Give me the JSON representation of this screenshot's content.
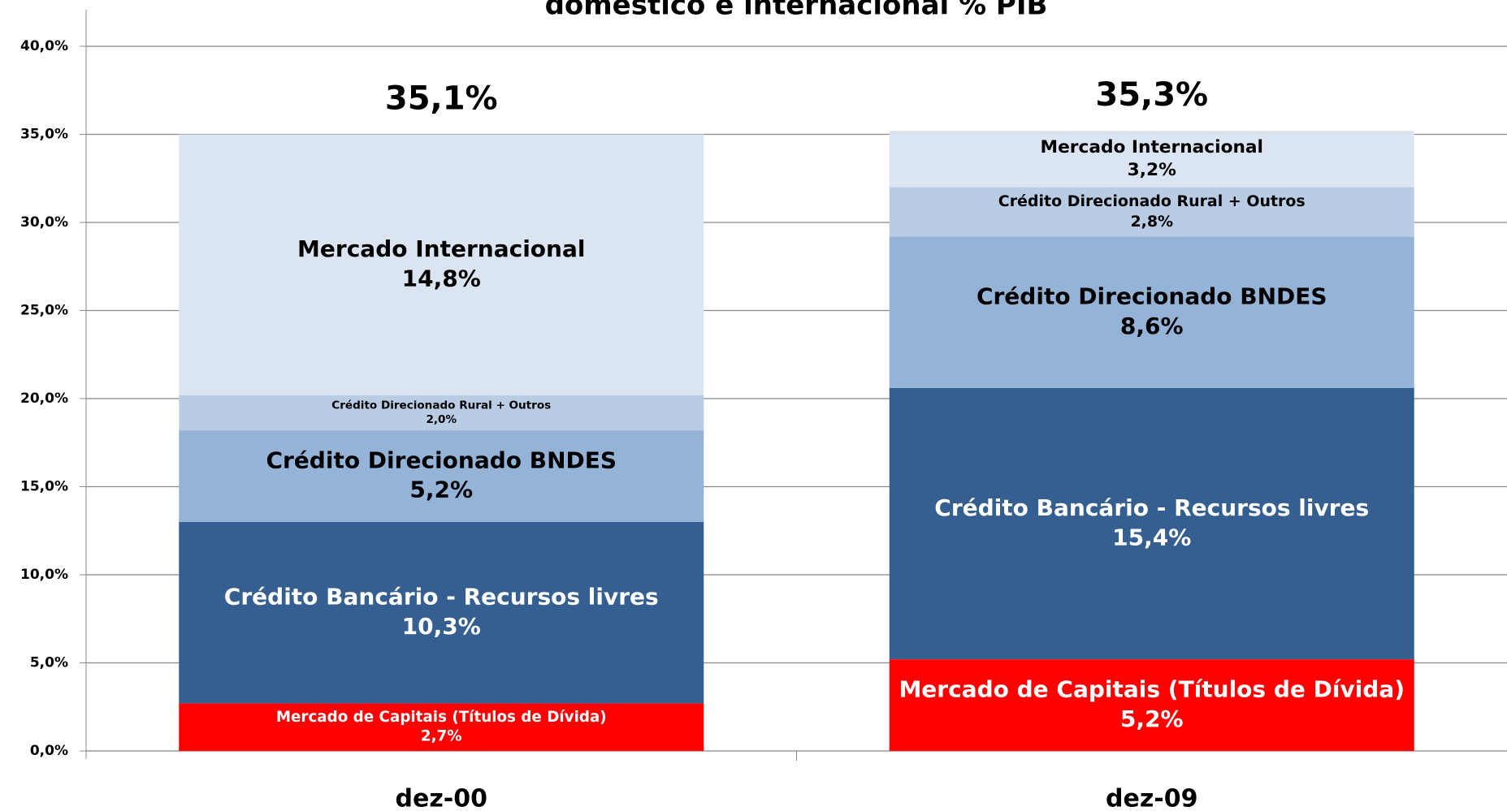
{
  "chart_data": {
    "type": "stacked_bar",
    "title": "doméstico e internacional % PIB",
    "categories": [
      "dez-00",
      "dez-09"
    ],
    "series": [
      {
        "name": "Mercado de Capitais (Títulos de Dívida)",
        "color": "#ff0000",
        "label_color": "#ffffff",
        "values": [
          2.7,
          5.2
        ],
        "value_labels": [
          "2,7%",
          "5,2%"
        ]
      },
      {
        "name": "Crédito Bancário - Recursos livres",
        "color": "#365f91",
        "label_color": "#ffffff",
        "values": [
          10.3,
          15.4
        ],
        "value_labels": [
          "10,3%",
          "15,4%"
        ]
      },
      {
        "name": "Crédito Direcionado BNDES",
        "color": "#95b3d7",
        "label_color": "#000000",
        "values": [
          5.2,
          8.6
        ],
        "value_labels": [
          "5,2%",
          "8,6%"
        ]
      },
      {
        "name": "Crédito Direcionado Rural + Outros",
        "color": "#b8cce4",
        "label_color": "#000000",
        "values": [
          2.0,
          2.8
        ],
        "value_labels": [
          "2,0%",
          "2,8%"
        ]
      },
      {
        "name": "Mercado Internacional",
        "color": "#dbe5f1",
        "label_color": "#000000",
        "values": [
          14.8,
          3.2
        ],
        "value_labels": [
          "14,8%",
          "3,2%"
        ]
      }
    ],
    "totals": [
      35.1,
      35.3
    ],
    "total_labels": [
      "35,1%",
      "35,3%"
    ],
    "ylim": [
      0,
      40
    ],
    "yticks": [
      {
        "value": 0,
        "label": "0,0%"
      },
      {
        "value": 5,
        "label": "5,0%"
      },
      {
        "value": 10,
        "label": "10,0%"
      },
      {
        "value": 15,
        "label": "15,0%"
      },
      {
        "value": 20,
        "label": "20,0%"
      },
      {
        "value": 25,
        "label": "25,0%"
      },
      {
        "value": 30,
        "label": "30,0%"
      },
      {
        "value": 35,
        "label": "35,0%"
      },
      {
        "value": 40,
        "label": "40,0%"
      }
    ],
    "grid": true
  }
}
